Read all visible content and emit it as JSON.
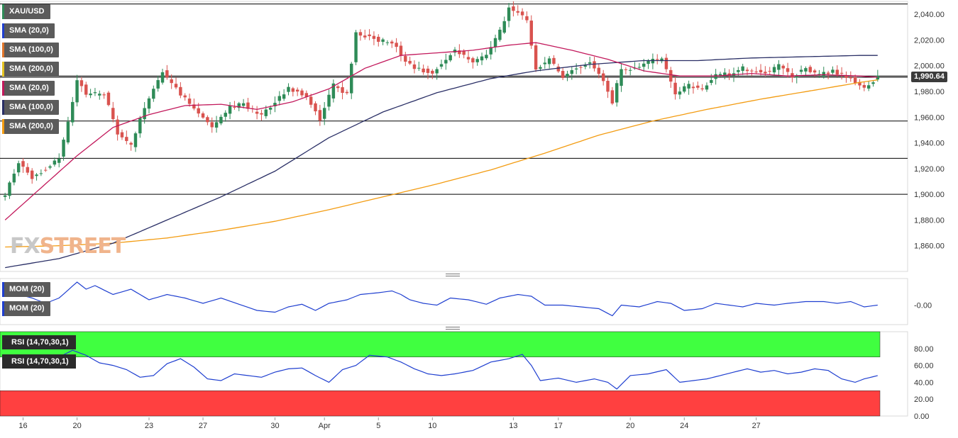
{
  "colors": {
    "candle_up": "#2e8b57",
    "candle_down": "#d9534f",
    "sma20": "#c2185b",
    "sma100": "#2a2f66",
    "sma200": "#f39c12",
    "momentum": "#1f3fd0",
    "rsi_line": "#1f3fd0",
    "rsi_overbought_zone": "#40ff40",
    "rsi_oversold_zone": "#ff4040",
    "hline": "#000000"
  },
  "legend": {
    "symbol": "XAU/USD",
    "items": [
      "SMA (20,0)",
      "SMA (100,0)",
      "SMA (200,0)",
      "SMA (20,0)",
      "SMA (100,0)",
      "SMA (200,0)"
    ],
    "item_colors": [
      "#1f3fd0",
      "#e0752a",
      "#e5c320",
      "#c2185b",
      "#2a2f66",
      "#f39c12"
    ]
  },
  "watermark": {
    "part1": "FX",
    "part2": "STREET"
  },
  "price_tag": "1,990.64",
  "chart_data": [
    {
      "type": "candlestick",
      "symbol": "XAU/USD",
      "price_axis": {
        "ylim": [
          1840,
          2050
        ],
        "ticks": [
          1860,
          1880,
          1900,
          1920,
          1940,
          1960,
          1980,
          2000,
          2020,
          2040
        ],
        "tick_labels": [
          "1,860.00",
          "1,880.00",
          "1,900.00",
          "1,920.00",
          "1,940.00",
          "1,960.00",
          "1,980.00",
          "2,000.00",
          "2,020.00",
          "2,040.00"
        ]
      },
      "x_axis": {
        "count": 195,
        "tick_labels": [
          "16",
          "20",
          "23",
          "27",
          "30",
          "Apr",
          "5",
          "10",
          "13",
          "17",
          "20",
          "24",
          "27"
        ],
        "tick_index": [
          4,
          16,
          32,
          44,
          60,
          71,
          83,
          95,
          113,
          123,
          139,
          151,
          167
        ]
      },
      "horizontal_lines": [
        2048,
        1992,
        1991,
        1957,
        1928,
        1900
      ],
      "last_price": 1990.64,
      "ohlc_anchors": [
        [
          0,
          1900
        ],
        [
          3,
          1925
        ],
        [
          6,
          1913
        ],
        [
          9,
          1920
        ],
        [
          12,
          1928
        ],
        [
          14,
          1955
        ],
        [
          16,
          1990
        ],
        [
          18,
          1978
        ],
        [
          22,
          1978
        ],
        [
          25,
          1948
        ],
        [
          28,
          1938
        ],
        [
          31,
          1968
        ],
        [
          35,
          1995
        ],
        [
          39,
          1978
        ],
        [
          43,
          1963
        ],
        [
          46,
          1952
        ],
        [
          50,
          1968
        ],
        [
          53,
          1970
        ],
        [
          57,
          1961
        ],
        [
          60,
          1972
        ],
        [
          63,
          1982
        ],
        [
          67,
          1977
        ],
        [
          70,
          1958
        ],
        [
          73,
          1985
        ],
        [
          76,
          1978
        ],
        [
          78,
          2025
        ],
        [
          81,
          2022
        ],
        [
          85,
          2018
        ],
        [
          87,
          2015
        ],
        [
          89,
          2003
        ],
        [
          92,
          1997
        ],
        [
          95,
          1995
        ],
        [
          98,
          2005
        ],
        [
          100,
          2013
        ],
        [
          104,
          2003
        ],
        [
          107,
          2008
        ],
        [
          110,
          2027
        ],
        [
          112,
          2045
        ],
        [
          114,
          2042
        ],
        [
          116,
          2035
        ],
        [
          118,
          1998
        ],
        [
          121,
          2005
        ],
        [
          124,
          1992
        ],
        [
          127,
          1998
        ],
        [
          130,
          2002
        ],
        [
          132,
          1995
        ],
        [
          135,
          1972
        ],
        [
          137,
          1998
        ],
        [
          140,
          1998
        ],
        [
          143,
          2003
        ],
        [
          146,
          2006
        ],
        [
          149,
          1978
        ],
        [
          152,
          1985
        ],
        [
          155,
          1982
        ],
        [
          158,
          1994
        ],
        [
          161,
          1993
        ],
        [
          164,
          1998
        ],
        [
          167,
          1996
        ],
        [
          170,
          1995
        ],
        [
          172,
          2000
        ],
        [
          175,
          1992
        ],
        [
          178,
          1998
        ],
        [
          181,
          1993
        ],
        [
          184,
          1996
        ],
        [
          188,
          1990
        ],
        [
          191,
          1982
        ],
        [
          194,
          1991
        ]
      ],
      "sma_anchors": {
        "sma20": [
          [
            0,
            1880
          ],
          [
            8,
            1905
          ],
          [
            16,
            1930
          ],
          [
            24,
            1952
          ],
          [
            32,
            1962
          ],
          [
            40,
            1969
          ],
          [
            48,
            1970
          ],
          [
            56,
            1966
          ],
          [
            64,
            1972
          ],
          [
            72,
            1982
          ],
          [
            80,
            1998
          ],
          [
            88,
            2008
          ],
          [
            96,
            2010
          ],
          [
            104,
            2012
          ],
          [
            112,
            2016
          ],
          [
            118,
            2018
          ],
          [
            126,
            2012
          ],
          [
            134,
            2005
          ],
          [
            142,
            1996
          ],
          [
            150,
            1992
          ],
          [
            158,
            1992
          ],
          [
            166,
            1994
          ],
          [
            174,
            1992
          ],
          [
            182,
            1993
          ],
          [
            190,
            1992
          ],
          [
            194,
            1991
          ]
        ],
        "sma100": [
          [
            0,
            1843
          ],
          [
            12,
            1850
          ],
          [
            24,
            1862
          ],
          [
            36,
            1880
          ],
          [
            48,
            1898
          ],
          [
            60,
            1918
          ],
          [
            72,
            1944
          ],
          [
            84,
            1964
          ],
          [
            96,
            1979
          ],
          [
            108,
            1990
          ],
          [
            118,
            1996
          ],
          [
            130,
            2001
          ],
          [
            142,
            2004
          ],
          [
            154,
            2004
          ],
          [
            166,
            2006
          ],
          [
            178,
            2007
          ],
          [
            190,
            2008
          ],
          [
            194,
            2008
          ]
        ],
        "sma200": [
          [
            0,
            1859
          ],
          [
            12,
            1860
          ],
          [
            24,
            1862
          ],
          [
            36,
            1866
          ],
          [
            48,
            1872
          ],
          [
            60,
            1879
          ],
          [
            72,
            1888
          ],
          [
            84,
            1898
          ],
          [
            96,
            1908
          ],
          [
            108,
            1919
          ],
          [
            120,
            1932
          ],
          [
            132,
            1946
          ],
          [
            144,
            1957
          ],
          [
            156,
            1966
          ],
          [
            168,
            1974
          ],
          [
            180,
            1981
          ],
          [
            190,
            1987
          ],
          [
            194,
            1989
          ]
        ]
      }
    },
    {
      "type": "line",
      "title": "MOM (20)",
      "legend": [
        "MOM (20)",
        "MOM (20)"
      ],
      "y_tick_label": "-0.00",
      "zero_value": 0,
      "ylim": [
        -22,
        30
      ],
      "anchors": [
        [
          0,
          10
        ],
        [
          3,
          12
        ],
        [
          6,
          8
        ],
        [
          9,
          2
        ],
        [
          12,
          8
        ],
        [
          16,
          26
        ],
        [
          18,
          18
        ],
        [
          20,
          22
        ],
        [
          24,
          12
        ],
        [
          28,
          18
        ],
        [
          32,
          6
        ],
        [
          36,
          12
        ],
        [
          40,
          8
        ],
        [
          44,
          2
        ],
        [
          48,
          8
        ],
        [
          52,
          1
        ],
        [
          56,
          -6
        ],
        [
          60,
          -8
        ],
        [
          63,
          -2
        ],
        [
          66,
          1
        ],
        [
          69,
          -6
        ],
        [
          72,
          2
        ],
        [
          76,
          6
        ],
        [
          79,
          12
        ],
        [
          83,
          14
        ],
        [
          86,
          16
        ],
        [
          88,
          12
        ],
        [
          90,
          6
        ],
        [
          93,
          2
        ],
        [
          96,
          0
        ],
        [
          99,
          8
        ],
        [
          103,
          6
        ],
        [
          107,
          1
        ],
        [
          110,
          8
        ],
        [
          114,
          12
        ],
        [
          117,
          10
        ],
        [
          120,
          0
        ],
        [
          124,
          0
        ],
        [
          128,
          -2
        ],
        [
          132,
          -4
        ],
        [
          135,
          -12
        ],
        [
          137,
          0
        ],
        [
          141,
          -2
        ],
        [
          145,
          4
        ],
        [
          148,
          2
        ],
        [
          151,
          -6
        ],
        [
          155,
          -4
        ],
        [
          158,
          2
        ],
        [
          161,
          0
        ],
        [
          164,
          -2
        ],
        [
          167,
          2
        ],
        [
          171,
          0
        ],
        [
          174,
          2
        ],
        [
          178,
          4
        ],
        [
          182,
          4
        ],
        [
          185,
          2
        ],
        [
          188,
          4
        ],
        [
          191,
          -2
        ],
        [
          194,
          0
        ]
      ]
    },
    {
      "type": "line",
      "title": "RSI (14,70,30,1)",
      "legend": [
        "RSI (14,70,30,1)",
        "RSI (14,70,30,1)"
      ],
      "ylim": [
        0,
        100
      ],
      "y_ticks": [
        0,
        20,
        40,
        60,
        80
      ],
      "y_tick_labels": [
        "0.00",
        "20.00",
        "40.00",
        "60.00",
        "80.00"
      ],
      "overbought": 70,
      "oversold": 30,
      "anchors": [
        [
          0,
          68
        ],
        [
          3,
          64
        ],
        [
          6,
          70
        ],
        [
          9,
          66
        ],
        [
          12,
          70
        ],
        [
          15,
          78
        ],
        [
          18,
          72
        ],
        [
          21,
          63
        ],
        [
          24,
          60
        ],
        [
          27,
          55
        ],
        [
          30,
          46
        ],
        [
          33,
          48
        ],
        [
          36,
          62
        ],
        [
          39,
          68
        ],
        [
          42,
          58
        ],
        [
          45,
          44
        ],
        [
          48,
          42
        ],
        [
          51,
          50
        ],
        [
          54,
          48
        ],
        [
          57,
          46
        ],
        [
          60,
          52
        ],
        [
          63,
          56
        ],
        [
          66,
          57
        ],
        [
          69,
          48
        ],
        [
          72,
          40
        ],
        [
          75,
          55
        ],
        [
          78,
          60
        ],
        [
          81,
          72
        ],
        [
          85,
          70
        ],
        [
          88,
          64
        ],
        [
          91,
          56
        ],
        [
          94,
          50
        ],
        [
          97,
          48
        ],
        [
          100,
          50
        ],
        [
          104,
          54
        ],
        [
          108,
          64
        ],
        [
          112,
          68
        ],
        [
          115,
          73
        ],
        [
          117,
          60
        ],
        [
          119,
          42
        ],
        [
          123,
          45
        ],
        [
          127,
          40
        ],
        [
          131,
          44
        ],
        [
          134,
          40
        ],
        [
          136,
          32
        ],
        [
          139,
          48
        ],
        [
          143,
          50
        ],
        [
          147,
          55
        ],
        [
          150,
          40
        ],
        [
          153,
          42
        ],
        [
          156,
          44
        ],
        [
          159,
          48
        ],
        [
          162,
          52
        ],
        [
          165,
          56
        ],
        [
          168,
          52
        ],
        [
          171,
          54
        ],
        [
          174,
          50
        ],
        [
          177,
          52
        ],
        [
          180,
          56
        ],
        [
          183,
          54
        ],
        [
          186,
          44
        ],
        [
          189,
          40
        ],
        [
          191,
          44
        ],
        [
          194,
          48
        ]
      ]
    }
  ]
}
